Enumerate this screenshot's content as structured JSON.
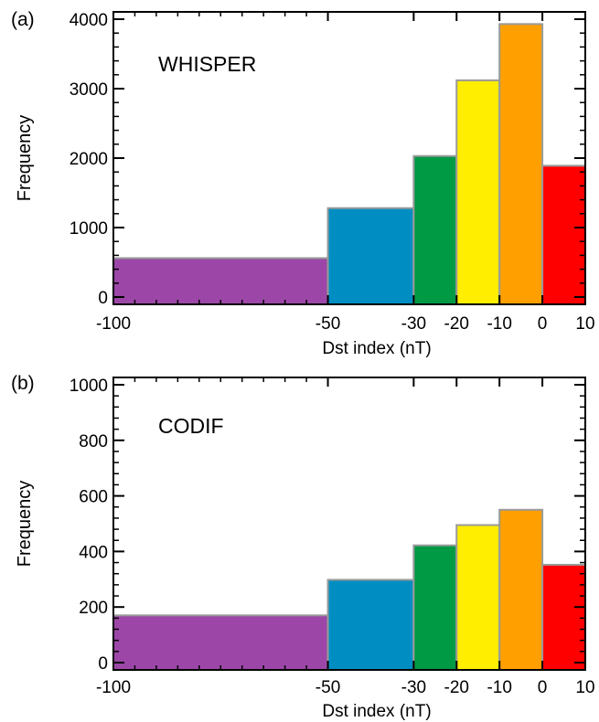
{
  "chart_data": [
    {
      "type": "bar",
      "panel_label": "(a)",
      "title": "WHISPER",
      "xlabel": "Dst index (nT)",
      "ylabel": "Frequency",
      "xlim": [
        -100,
        10
      ],
      "ylim": [
        0,
        4000
      ],
      "x_ticks": [
        "-100",
        "-50",
        "-30",
        "-20",
        "-10",
        "0",
        "10"
      ],
      "y_ticks": [
        "0",
        "1000",
        "2000",
        "3000",
        "4000"
      ],
      "grid": false,
      "bins": [
        {
          "x0": -100,
          "x1": -50,
          "value": 560,
          "color": "#9c47a8"
        },
        {
          "x0": -50,
          "x1": -30,
          "value": 1280,
          "color": "#008ec2"
        },
        {
          "x0": -30,
          "x1": -20,
          "value": 2030,
          "color": "#009944"
        },
        {
          "x0": -20,
          "x1": -10,
          "value": 3120,
          "color": "#ffee00"
        },
        {
          "x0": -10,
          "x1": 0,
          "value": 3930,
          "color": "#ff9f00"
        },
        {
          "x0": 0,
          "x1": 10,
          "value": 1890,
          "color": "#ff0000"
        }
      ]
    },
    {
      "type": "bar",
      "panel_label": "(b)",
      "title": "CODIF",
      "xlabel": "Dst index (nT)",
      "ylabel": "Frequency",
      "xlim": [
        -100,
        10
      ],
      "ylim": [
        0,
        1000
      ],
      "x_ticks": [
        "-100",
        "-50",
        "-30",
        "-20",
        "-10",
        "0",
        "10"
      ],
      "y_ticks": [
        "0",
        "200",
        "400",
        "600",
        "800",
        "1000"
      ],
      "grid": false,
      "bins": [
        {
          "x0": -100,
          "x1": -50,
          "value": 170,
          "color": "#9c47a8"
        },
        {
          "x0": -50,
          "x1": -30,
          "value": 298,
          "color": "#008ec2"
        },
        {
          "x0": -30,
          "x1": -20,
          "value": 422,
          "color": "#009944"
        },
        {
          "x0": -20,
          "x1": -10,
          "value": 495,
          "color": "#ffee00"
        },
        {
          "x0": -10,
          "x1": 0,
          "value": 550,
          "color": "#ff9f00"
        },
        {
          "x0": 0,
          "x1": 10,
          "value": 352,
          "color": "#ff0000"
        }
      ]
    }
  ]
}
